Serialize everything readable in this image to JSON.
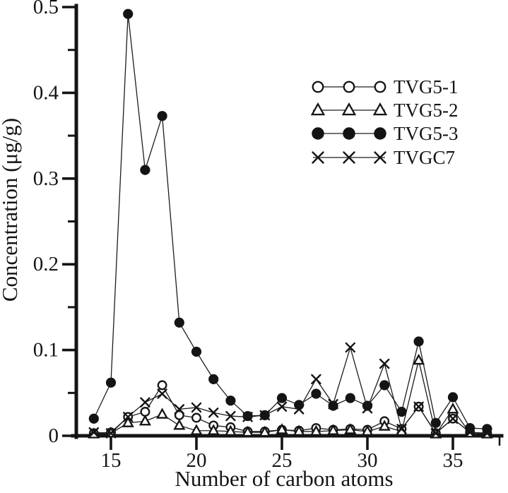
{
  "figure": {
    "background": "#ffffff",
    "ink": "#141414"
  },
  "chart_data": {
    "type": "line",
    "title": "",
    "xlabel": "Number of carbon atoms",
    "ylabel": "Concentration (μg/g)",
    "xlim": [
      13.5,
      38
    ],
    "ylim": [
      0,
      0.5
    ],
    "grid": false,
    "legend_position": "upper-right-inside",
    "x_ticks": [
      {
        "v": 15,
        "label": "15"
      },
      {
        "v": 20,
        "label": "20"
      },
      {
        "v": 25,
        "label": "25"
      },
      {
        "v": 30,
        "label": "30"
      },
      {
        "v": 35,
        "label": "35"
      }
    ],
    "y_ticks": [
      {
        "v": 0,
        "label": "0"
      },
      {
        "v": 0.1,
        "label": "0.1"
      },
      {
        "v": 0.2,
        "label": "0.2"
      },
      {
        "v": 0.3,
        "label": "0.3"
      },
      {
        "v": 0.4,
        "label": "0.4"
      },
      {
        "v": 0.5,
        "label": "0.5"
      }
    ],
    "y_minor_ticks": [
      0.05,
      0.15,
      0.25,
      0.35,
      0.45
    ],
    "x": [
      14,
      15,
      16,
      17,
      18,
      19,
      20,
      21,
      22,
      23,
      24,
      25,
      26,
      27,
      28,
      29,
      30,
      31,
      32,
      33,
      34,
      35,
      36,
      37
    ],
    "series": [
      {
        "name": "TVG5-1",
        "marker": "open-circle",
        "values": [
          0.003,
          0.004,
          0.022,
          0.028,
          0.059,
          0.024,
          0.021,
          0.012,
          0.01,
          0.005,
          0.005,
          0.007,
          0.006,
          0.009,
          0.007,
          0.008,
          0.007,
          0.017,
          0.008,
          0.034,
          0.003,
          0.02,
          0.004,
          0.003
        ]
      },
      {
        "name": "TVG5-2",
        "marker": "open-triangle",
        "values": [
          0.002,
          0.003,
          0.015,
          0.017,
          0.025,
          0.012,
          0.006,
          0.006,
          0.005,
          0.004,
          0.004,
          0.007,
          0.005,
          0.005,
          0.006,
          0.007,
          0.005,
          0.011,
          0.005,
          0.088,
          0.002,
          0.031,
          0.003,
          0.002
        ]
      },
      {
        "name": "TVG5-3",
        "marker": "filled-circle",
        "values": [
          0.02,
          0.062,
          0.492,
          0.31,
          0.373,
          0.132,
          0.098,
          0.066,
          0.041,
          0.023,
          0.024,
          0.044,
          0.036,
          0.049,
          0.035,
          0.044,
          0.035,
          0.059,
          0.028,
          0.11,
          0.015,
          0.045,
          0.009,
          0.008
        ]
      },
      {
        "name": "TVGC7",
        "marker": "x-cross",
        "values": [
          0.004,
          0.003,
          0.022,
          0.039,
          0.049,
          0.031,
          0.033,
          0.027,
          0.023,
          0.022,
          0.024,
          0.034,
          0.031,
          0.066,
          0.037,
          0.103,
          0.032,
          0.084,
          0.008,
          0.034,
          0.003,
          0.02,
          0.004,
          0.003
        ]
      }
    ]
  }
}
